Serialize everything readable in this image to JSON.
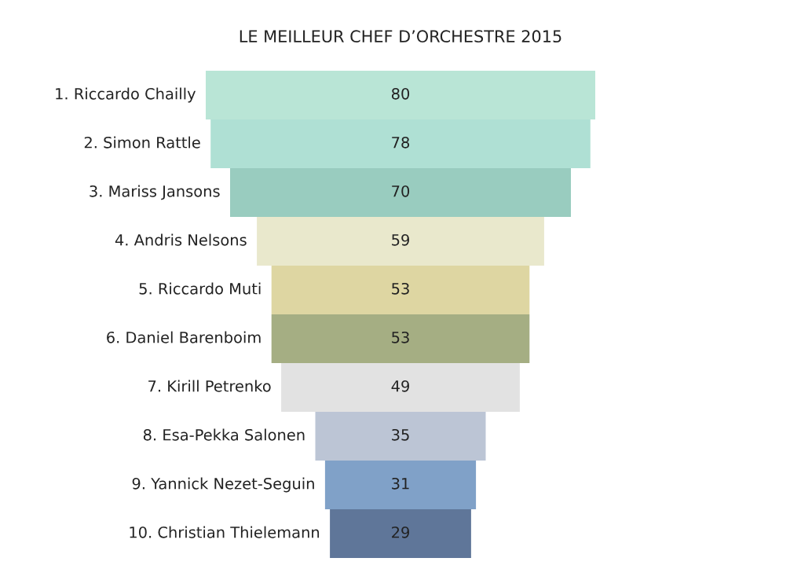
{
  "chart_data": {
    "type": "other",
    "title": "LE MEILLEUR CHEF D’ORCHESTRE 2015",
    "categories": [
      "1. Riccardo Chailly",
      "2. Simon Rattle",
      "3. Mariss Jansons",
      "4. Andris Nelsons",
      "5. Riccardo Muti",
      "6. Daniel Barenboim",
      "7. Kirill Petrenko",
      "8. Esa-Pekka Salonen",
      "9. Yannick Nezet-Seguin",
      "10. Christian Thielemann"
    ],
    "values": [
      80,
      78,
      70,
      59,
      53,
      53,
      49,
      35,
      31,
      29
    ],
    "colors": [
      "#b9e5d6",
      "#afe0d4",
      "#99ccbf",
      "#e9e8cc",
      "#ded6a2",
      "#a5ae83",
      "#e2e2e2",
      "#bcc5d5",
      "#80a1c8",
      "#5f7699"
    ],
    "data_labels": true
  }
}
